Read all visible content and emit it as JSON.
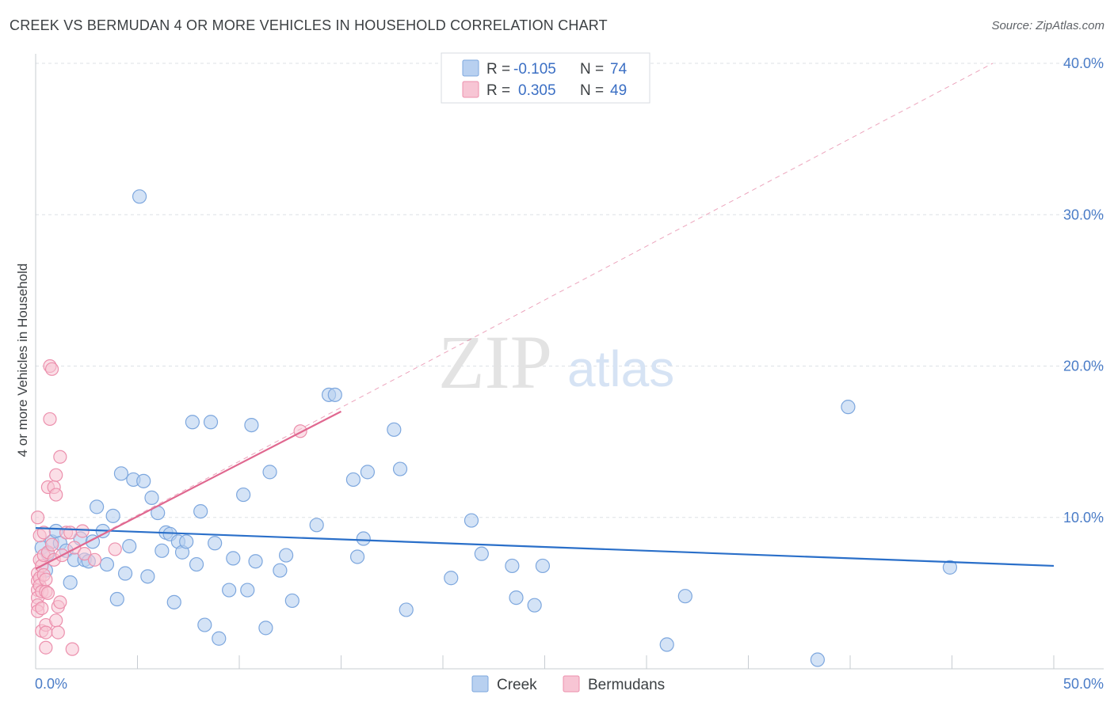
{
  "title": "CREEK VS BERMUDAN 4 OR MORE VEHICLES IN HOUSEHOLD CORRELATION CHART",
  "source": "Source: ZipAtlas.com",
  "watermark": {
    "zip": "ZIP",
    "atlas": "atlas"
  },
  "colors": {
    "creek_fill": "#b8d0f0",
    "creek_stroke": "#7da7de",
    "creek_line": "#2a6fc9",
    "bermudan_fill": "#f7c5d4",
    "bermudan_stroke": "#ec90ad",
    "bermudan_line": "#e06890",
    "grid": "#dde1e6",
    "axis_text": "#4a7cc7"
  },
  "legend": {
    "r_label": "R =",
    "n_label": "N =",
    "creek": {
      "r": "-0.105",
      "n": "74"
    },
    "bermudans": {
      "r": "0.305",
      "n": "49"
    }
  },
  "chart_data": {
    "type": "scatter",
    "xlabel": "",
    "ylabel": "4 or more Vehicles in Household",
    "xlim": [
      0,
      50
    ],
    "ylim": [
      0,
      40
    ],
    "x_tick_labels": [
      "0.0%",
      "50.0%"
    ],
    "y_ticks": [
      10,
      20,
      30,
      40
    ],
    "y_tick_labels": [
      "10.0%",
      "20.0%",
      "30.0%",
      "40.0%"
    ],
    "grid": true,
    "series": [
      {
        "name": "Creek",
        "trend": {
          "x": [
            0,
            50
          ],
          "y": [
            9.3,
            6.8
          ]
        },
        "points": [
          [
            0.3,
            8.0
          ],
          [
            0.5,
            6.5
          ],
          [
            0.6,
            7.6
          ],
          [
            0.8,
            8.4
          ],
          [
            1.0,
            9.1
          ],
          [
            1.2,
            8.3
          ],
          [
            1.5,
            7.8
          ],
          [
            1.7,
            5.7
          ],
          [
            1.9,
            7.2
          ],
          [
            2.2,
            8.6
          ],
          [
            2.4,
            7.2
          ],
          [
            2.6,
            7.1
          ],
          [
            2.8,
            8.4
          ],
          [
            3.0,
            10.7
          ],
          [
            3.3,
            9.1
          ],
          [
            3.5,
            6.9
          ],
          [
            3.8,
            10.1
          ],
          [
            4.0,
            4.6
          ],
          [
            4.2,
            12.9
          ],
          [
            4.4,
            6.3
          ],
          [
            4.6,
            8.1
          ],
          [
            4.8,
            12.5
          ],
          [
            5.1,
            31.2
          ],
          [
            5.3,
            12.4
          ],
          [
            5.5,
            6.1
          ],
          [
            5.7,
            11.3
          ],
          [
            6.0,
            10.3
          ],
          [
            6.2,
            7.8
          ],
          [
            6.4,
            9.0
          ],
          [
            6.6,
            8.9
          ],
          [
            6.8,
            4.4
          ],
          [
            7.0,
            8.4
          ],
          [
            7.2,
            7.7
          ],
          [
            7.4,
            8.4
          ],
          [
            7.7,
            16.3
          ],
          [
            7.9,
            6.9
          ],
          [
            8.1,
            10.4
          ],
          [
            8.3,
            2.9
          ],
          [
            8.6,
            16.3
          ],
          [
            8.8,
            8.3
          ],
          [
            9.0,
            2.0
          ],
          [
            9.5,
            5.2
          ],
          [
            9.7,
            7.3
          ],
          [
            10.2,
            11.5
          ],
          [
            10.4,
            5.2
          ],
          [
            10.6,
            16.1
          ],
          [
            10.8,
            7.1
          ],
          [
            11.3,
            2.7
          ],
          [
            11.5,
            13.0
          ],
          [
            12.0,
            6.5
          ],
          [
            12.3,
            7.5
          ],
          [
            12.6,
            4.5
          ],
          [
            13.8,
            9.5
          ],
          [
            14.4,
            18.1
          ],
          [
            14.7,
            18.1
          ],
          [
            15.6,
            12.5
          ],
          [
            15.8,
            7.4
          ],
          [
            16.1,
            8.6
          ],
          [
            16.3,
            13.0
          ],
          [
            17.6,
            15.8
          ],
          [
            17.9,
            13.2
          ],
          [
            18.2,
            3.9
          ],
          [
            20.4,
            6.0
          ],
          [
            21.4,
            9.8
          ],
          [
            21.9,
            7.6
          ],
          [
            23.4,
            6.8
          ],
          [
            23.6,
            4.7
          ],
          [
            24.5,
            4.2
          ],
          [
            24.9,
            6.8
          ],
          [
            31.0,
            1.6
          ],
          [
            31.9,
            4.8
          ],
          [
            38.4,
            0.6
          ],
          [
            39.9,
            17.3
          ],
          [
            44.9,
            6.7
          ]
        ]
      },
      {
        "name": "Bermudans",
        "trend": {
          "x": [
            0,
            15
          ],
          "y": [
            6.6,
            17.0
          ]
        },
        "trend_extended": {
          "x": [
            0,
            47
          ],
          "y": [
            6.6,
            40.0
          ]
        },
        "points": [
          [
            0.1,
            10.0
          ],
          [
            0.1,
            6.3
          ],
          [
            0.1,
            5.8
          ],
          [
            0.1,
            5.2
          ],
          [
            0.1,
            4.7
          ],
          [
            0.1,
            4.2
          ],
          [
            0.1,
            3.8
          ],
          [
            0.2,
            8.8
          ],
          [
            0.2,
            7.2
          ],
          [
            0.2,
            6.0
          ],
          [
            0.2,
            5.5
          ],
          [
            0.3,
            6.8
          ],
          [
            0.3,
            5.1
          ],
          [
            0.3,
            4.0
          ],
          [
            0.3,
            2.5
          ],
          [
            0.4,
            9.0
          ],
          [
            0.4,
            7.5
          ],
          [
            0.4,
            6.2
          ],
          [
            0.5,
            5.9
          ],
          [
            0.5,
            5.1
          ],
          [
            0.5,
            2.9
          ],
          [
            0.5,
            2.4
          ],
          [
            0.5,
            1.4
          ],
          [
            0.6,
            12.0
          ],
          [
            0.6,
            7.7
          ],
          [
            0.6,
            5.0
          ],
          [
            0.7,
            20.0
          ],
          [
            0.7,
            16.5
          ],
          [
            0.8,
            19.8
          ],
          [
            0.8,
            8.2
          ],
          [
            0.9,
            12.0
          ],
          [
            0.9,
            7.2
          ],
          [
            1.0,
            12.8
          ],
          [
            1.0,
            11.5
          ],
          [
            1.0,
            3.2
          ],
          [
            1.1,
            4.1
          ],
          [
            1.1,
            2.4
          ],
          [
            1.2,
            14.0
          ],
          [
            1.2,
            4.4
          ],
          [
            1.3,
            7.5
          ],
          [
            1.5,
            9.0
          ],
          [
            1.7,
            9.0
          ],
          [
            1.8,
            1.3
          ],
          [
            1.9,
            8.0
          ],
          [
            2.3,
            9.1
          ],
          [
            2.4,
            7.6
          ],
          [
            2.9,
            7.2
          ],
          [
            3.9,
            7.9
          ],
          [
            13.0,
            15.7
          ]
        ]
      }
    ]
  }
}
